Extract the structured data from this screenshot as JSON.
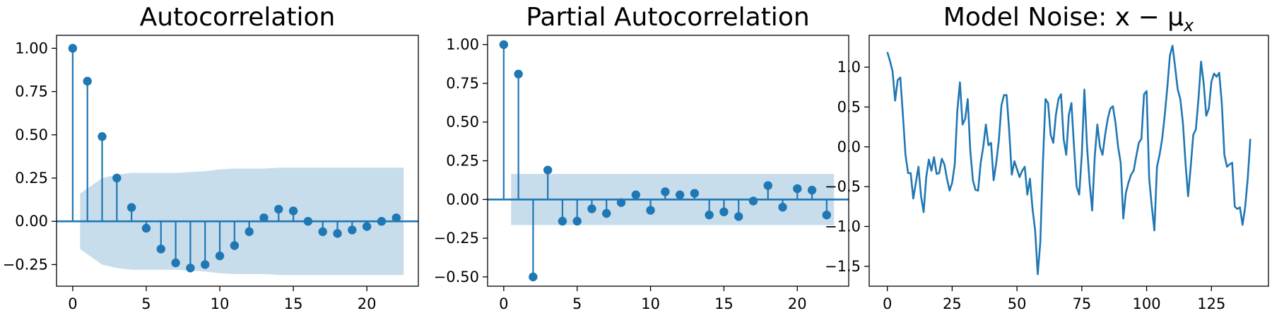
{
  "chart_data": [
    {
      "type": "stem",
      "title": "Autocorrelation",
      "xlim": [
        -1.1,
        23.5
      ],
      "ylim": [
        -0.375,
        1.075
      ],
      "xticks": [
        0,
        5,
        10,
        15,
        20
      ],
      "yticks": [
        -0.25,
        0.0,
        0.25,
        0.5,
        0.75,
        1.0
      ],
      "ytick_labels": [
        "−0.25",
        "0.00",
        "0.25",
        "0.50",
        "0.75",
        "1.00"
      ],
      "lags": [
        0,
        1,
        2,
        3,
        4,
        5,
        6,
        7,
        8,
        9,
        10,
        11,
        12,
        13,
        14,
        15,
        16,
        17,
        18,
        19,
        20,
        21,
        22
      ],
      "values": [
        1.0,
        0.81,
        0.49,
        0.25,
        0.08,
        -0.04,
        -0.16,
        -0.24,
        -0.27,
        -0.25,
        -0.2,
        -0.14,
        -0.06,
        0.02,
        0.07,
        0.06,
        0.0,
        -0.06,
        -0.07,
        -0.05,
        -0.03,
        0.0,
        0.02
      ],
      "confidence_band": {
        "lags": [
          0.5,
          1,
          2,
          3,
          4,
          5,
          6,
          7,
          8,
          9,
          10,
          11,
          12,
          13,
          14,
          15,
          16,
          17,
          18,
          19,
          20,
          21,
          22,
          22.5
        ],
        "upper": [
          0.16,
          0.19,
          0.25,
          0.27,
          0.28,
          0.28,
          0.28,
          0.28,
          0.285,
          0.29,
          0.3,
          0.305,
          0.305,
          0.305,
          0.31,
          0.31,
          0.31,
          0.31,
          0.31,
          0.31,
          0.31,
          0.31,
          0.31,
          0.31
        ]
      },
      "color": "#1f77b4"
    },
    {
      "type": "stem",
      "title": "Partial Autocorrelation",
      "xlim": [
        -1.1,
        23.5
      ],
      "ylim": [
        -0.56,
        1.06
      ],
      "xticks": [
        0,
        5,
        10,
        15,
        20
      ],
      "yticks": [
        -0.5,
        -0.25,
        0.0,
        0.25,
        0.5,
        0.75,
        1.0
      ],
      "ytick_labels": [
        "−0.50",
        "−0.25",
        "0.00",
        "0.25",
        "0.50",
        "0.75",
        "1.00"
      ],
      "lags": [
        0,
        1,
        2,
        3,
        4,
        5,
        6,
        7,
        8,
        9,
        10,
        11,
        12,
        13,
        14,
        15,
        16,
        17,
        18,
        19,
        20,
        21,
        22
      ],
      "values": [
        1.0,
        0.81,
        -0.5,
        0.19,
        -0.14,
        -0.14,
        -0.06,
        -0.09,
        -0.02,
        0.03,
        -0.07,
        0.05,
        0.03,
        0.04,
        -0.1,
        -0.08,
        -0.11,
        -0.01,
        0.09,
        -0.05,
        0.07,
        0.06,
        -0.1
      ],
      "confidence_band": {
        "lags": [
          0.5,
          22.5
        ],
        "upper": [
          0.165,
          0.165
        ]
      },
      "color": "#1f77b4"
    },
    {
      "type": "line",
      "title": "Model Noise: x − μ",
      "title_subscript": "x",
      "xlim": [
        -7,
        147
      ],
      "ylim": [
        -1.75,
        1.4
      ],
      "xticks": [
        0,
        25,
        50,
        75,
        100,
        125
      ],
      "yticks": [
        -1.5,
        -1.0,
        -0.5,
        0.0,
        0.5,
        1.0
      ],
      "ytick_labels": [
        "−1.5",
        "−1.0",
        "−0.5",
        "0.0",
        "0.5",
        "1.0"
      ],
      "x_start": 0,
      "values": [
        1.19,
        1.08,
        0.95,
        0.58,
        0.84,
        0.87,
        0.4,
        -0.1,
        -0.33,
        -0.33,
        -0.65,
        -0.45,
        -0.25,
        -0.62,
        -0.82,
        -0.38,
        -0.16,
        -0.3,
        -0.13,
        -0.34,
        -0.33,
        -0.15,
        -0.22,
        -0.4,
        -0.55,
        -0.45,
        -0.22,
        0.46,
        0.81,
        0.28,
        0.35,
        0.6,
        -0.05,
        -0.42,
        -0.54,
        -0.55,
        -0.2,
        0.0,
        0.28,
        0.02,
        0.05,
        -0.42,
        -0.2,
        0.08,
        0.52,
        0.65,
        0.65,
        0.2,
        -0.35,
        -0.18,
        -0.28,
        -0.38,
        -0.3,
        -0.25,
        -0.6,
        -0.4,
        -0.78,
        -1.05,
        -1.6,
        -1.2,
        -0.2,
        0.6,
        0.55,
        0.15,
        0.05,
        0.4,
        0.6,
        0.66,
        0.1,
        -0.1,
        0.4,
        0.55,
        0.0,
        -0.5,
        -0.6,
        -0.1,
        0.72,
        0.02,
        -0.45,
        -0.8,
        -0.12,
        0.28,
        0.0,
        -0.1,
        0.15,
        0.35,
        0.48,
        0.51,
        0.3,
        0.0,
        -0.2,
        -0.9,
        -0.58,
        -0.45,
        -0.35,
        -0.3,
        -0.12,
        0.05,
        0.1,
        0.66,
        0.7,
        -0.4,
        -0.75,
        -1.05,
        -0.25,
        -0.1,
        0.1,
        0.4,
        0.75,
        1.15,
        1.27,
        1.0,
        0.72,
        0.6,
        0.3,
        -0.2,
        -0.62,
        -0.25,
        0.15,
        0.22,
        0.6,
        1.07,
        0.8,
        0.39,
        0.48,
        0.82,
        0.92,
        0.88,
        0.93,
        0.55,
        -0.1,
        -0.25,
        -0.22,
        -0.2,
        -0.75,
        -0.78,
        -0.76,
        -0.98,
        -0.76,
        -0.4,
        0.1
      ],
      "color": "#1f77b4"
    }
  ]
}
